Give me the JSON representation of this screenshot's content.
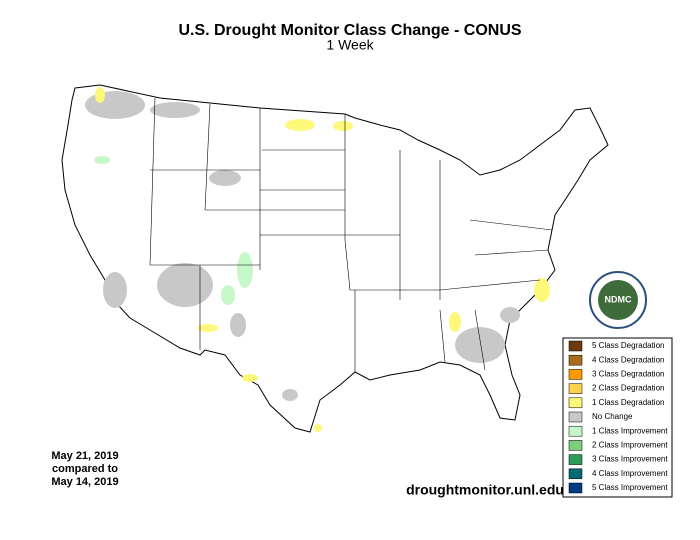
{
  "header": {
    "title": "U.S. Drought Monitor Class Change - CONUS",
    "subtitle": "1 Week"
  },
  "legend": {
    "items": [
      {
        "label": "5 Class Degradation",
        "color": "#6b3a0e"
      },
      {
        "label": "4 Class Degradation",
        "color": "#a86d1a"
      },
      {
        "label": "3 Class Degradation",
        "color": "#ff9a00"
      },
      {
        "label": "2 Class Degradation",
        "color": "#ffd24d"
      },
      {
        "label": "1 Class Degradation",
        "color": "#fdf87a"
      },
      {
        "label": "No Change",
        "color": "#c8c8c8"
      },
      {
        "label": "1 Class Improvement",
        "color": "#c6f7c8"
      },
      {
        "label": "2 Class Improvement",
        "color": "#7ccd7c"
      },
      {
        "label": "3 Class Improvement",
        "color": "#2e9b5c"
      },
      {
        "label": "4 Class Improvement",
        "color": "#006a73"
      },
      {
        "label": "5 Class Improvement",
        "color": "#003f7f"
      }
    ]
  },
  "date_note": {
    "lines": [
      "May 21, 2019",
      "compared to",
      "May 14, 2019"
    ]
  },
  "source": "droughtmonitor.unl.edu",
  "logo": {
    "text": "NDMC"
  }
}
